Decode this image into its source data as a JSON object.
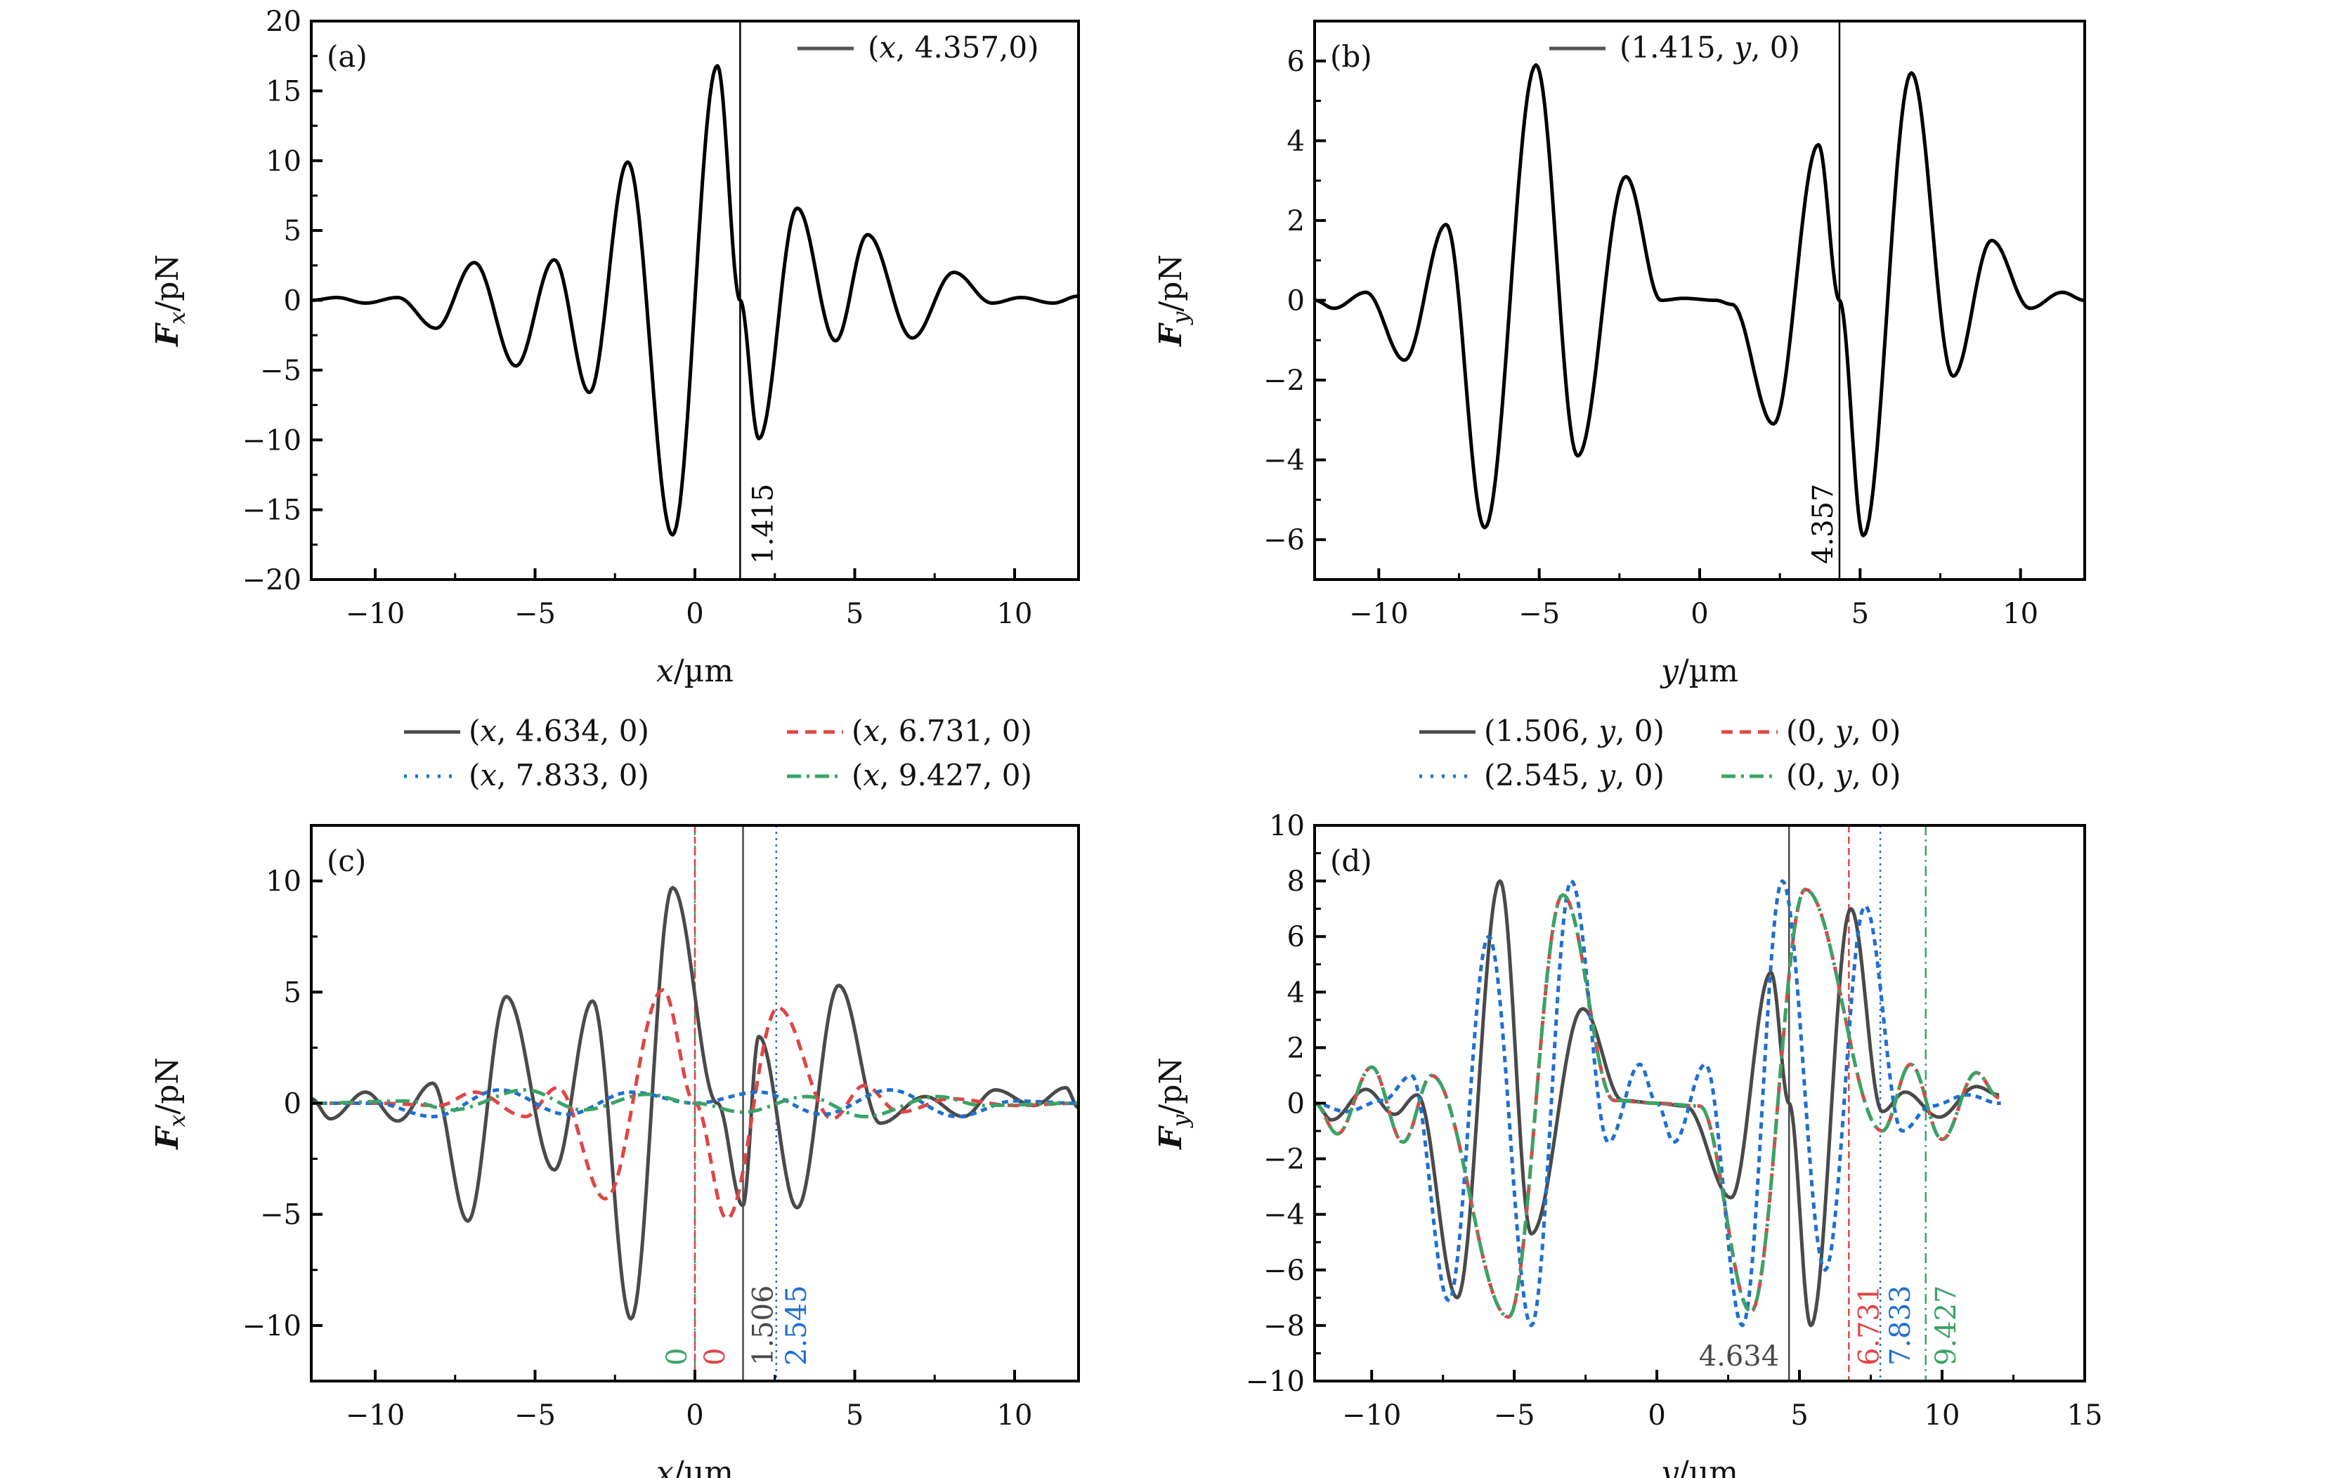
{
  "chart_data": [
    {
      "id": "a",
      "type": "line",
      "panel_label": "(a)",
      "xlabel": "x/µm",
      "ylabel": "Fx/pN",
      "xlim": [
        -12,
        12
      ],
      "ylim": [
        -20,
        20
      ],
      "xticks": [
        -10,
        -5,
        0,
        5,
        10
      ],
      "xtick_labels": [
        "−10",
        "−5",
        "0",
        "5",
        "10"
      ],
      "yticks": [
        -20,
        -15,
        -10,
        -5,
        0,
        5,
        10,
        15,
        20
      ],
      "ytick_labels": [
        "−20",
        "−15",
        "−10",
        "−5",
        "0",
        "5",
        "10",
        "15",
        "20"
      ],
      "legend_position": "top-right",
      "series": [
        {
          "name": "(x, 4.357,0)",
          "color": "#000000",
          "style": "solid",
          "x": [
            -12,
            -11.2,
            -10.3,
            -9.3,
            -8.1,
            -6.9,
            -5.6,
            -4.4,
            -3.3,
            -2.1,
            -0.7,
            0.7,
            1.415,
            2.0,
            3.2,
            4.4,
            5.4,
            6.8,
            8.1,
            9.3,
            10.2,
            11.2,
            12
          ],
          "y": [
            0,
            0.2,
            -0.2,
            0.2,
            -2.0,
            2.7,
            -4.7,
            2.9,
            -6.6,
            9.9,
            -16.8,
            16.8,
            0,
            -9.9,
            6.6,
            -2.9,
            4.7,
            -2.7,
            2.0,
            -0.2,
            0.2,
            -0.2,
            0.3
          ]
        }
      ],
      "markers": [
        {
          "x": 1.415,
          "label": "1.415",
          "color": "#000000",
          "style": "solid"
        }
      ]
    },
    {
      "id": "b",
      "type": "line",
      "panel_label": "(b)",
      "xlabel": "y/µm",
      "ylabel": "Fy/pN",
      "xlim": [
        -12,
        12
      ],
      "ylim": [
        -7,
        7
      ],
      "xticks": [
        -10,
        -5,
        0,
        5,
        10
      ],
      "xtick_labels": [
        "−10",
        "−5",
        "0",
        "5",
        "10"
      ],
      "yticks": [
        -6,
        -4,
        -2,
        0,
        2,
        4,
        6
      ],
      "ytick_labels": [
        "−6",
        "−4",
        "−2",
        "0",
        "2",
        "4",
        "6"
      ],
      "legend_position": "top-center",
      "series": [
        {
          "name": "(1.415, y, 0)",
          "color": "#000000",
          "style": "solid",
          "x": [
            -12,
            -11.4,
            -10.4,
            -9.2,
            -7.9,
            -6.7,
            -5.1,
            -3.8,
            -2.3,
            -1.2,
            -0.5,
            0.5,
            1.0,
            2.3,
            3.7,
            4.357,
            5.1,
            6.6,
            7.9,
            9.1,
            10.3,
            11.3,
            12
          ],
          "y": [
            0,
            -0.2,
            0.2,
            -1.5,
            1.9,
            -5.7,
            5.9,
            -3.9,
            3.1,
            0,
            0.05,
            0,
            -0.1,
            -3.1,
            3.9,
            0,
            -5.9,
            5.7,
            -1.9,
            1.5,
            -0.2,
            0.2,
            0
          ]
        }
      ],
      "markers": [
        {
          "x": 4.357,
          "label": "4.357",
          "color": "#000000",
          "style": "solid"
        }
      ]
    },
    {
      "id": "c",
      "type": "line",
      "panel_label": "(c)",
      "xlabel": "x/µm",
      "ylabel": "Fx/pN",
      "xlim": [
        -12,
        12
      ],
      "ylim": [
        -12.5,
        12.5
      ],
      "xticks": [
        -10,
        -5,
        0,
        5,
        10
      ],
      "xtick_labels": [
        "−10",
        "−5",
        "0",
        "5",
        "10"
      ],
      "yticks": [
        -10,
        -5,
        0,
        5,
        10
      ],
      "ytick_labels": [
        "−10",
        "−5",
        "0",
        "5",
        "10"
      ],
      "legend_position": "top-outside",
      "series": [
        {
          "name": "(x, 4.634, 0)",
          "color": "#4a4a4a",
          "style": "solid",
          "x": [
            -12,
            -11.4,
            -10.3,
            -9.3,
            -8.2,
            -7.1,
            -5.9,
            -4.4,
            -3.2,
            -2.0,
            -0.7,
            0.7,
            1.5,
            2.0,
            3.2,
            4.5,
            5.8,
            7.2,
            8.4,
            9.4,
            10.6,
            11.6,
            12
          ],
          "y": [
            0.2,
            -0.7,
            0.5,
            -0.8,
            0.9,
            -5.3,
            4.8,
            -3.0,
            4.6,
            -9.7,
            9.7,
            0,
            -4.6,
            3.0,
            -4.7,
            5.3,
            -0.9,
            0.3,
            -0.6,
            0.6,
            -0.1,
            0.7,
            -0.2
          ]
        },
        {
          "name": "(x, 6.731, 0)",
          "color": "#e04545",
          "style": "dashed",
          "x": [
            -12,
            -10,
            -8,
            -6.9,
            -5.3,
            -4.3,
            -2.8,
            -1.0,
            0,
            1.0,
            2.6,
            4.3,
            5.3,
            6.4,
            8,
            10,
            12
          ],
          "y": [
            0,
            0,
            -0.1,
            0.5,
            -0.6,
            0.7,
            -4.3,
            5.1,
            0,
            -5.2,
            4.3,
            -0.7,
            0.8,
            -0.4,
            0.2,
            -0.1,
            0
          ]
        },
        {
          "name": "(x, 7.833, 0)",
          "color": "#1f6fd1",
          "style": "dotted",
          "x": [
            -12,
            -10,
            -8.2,
            -6.1,
            -4.0,
            -2.0,
            0,
            2.0,
            4.0,
            6.1,
            8.2,
            10,
            12
          ],
          "y": [
            0,
            0,
            -0.6,
            0.6,
            -0.5,
            0.5,
            0,
            0.5,
            -0.5,
            0.6,
            -0.6,
            0.1,
            0
          ]
        },
        {
          "name": "(x, 9.427, 0)",
          "color": "#3aa366",
          "style": "dashdot",
          "x": [
            -12,
            -9,
            -7.6,
            -5.3,
            -3.5,
            -1.5,
            0,
            1.5,
            3.5,
            5.3,
            7.6,
            9,
            12
          ],
          "y": [
            0,
            0.1,
            -0.3,
            0.6,
            -0.3,
            0.4,
            0,
            -0.4,
            0.3,
            -0.6,
            0.3,
            -0.1,
            0
          ]
        }
      ],
      "markers": [
        {
          "x": 0,
          "label": "0",
          "color": "#3aa366",
          "style": "dashdot",
          "side": "left"
        },
        {
          "x": 0,
          "label": "0",
          "color": "#e04545",
          "style": "dashed",
          "side": "right"
        },
        {
          "x": 1.506,
          "label": "1.506",
          "color": "#4a4a4a",
          "style": "solid",
          "side": "right"
        },
        {
          "x": 2.545,
          "label": "2.545",
          "color": "#1f6fd1",
          "style": "dotted",
          "side": "right"
        }
      ]
    },
    {
      "id": "d",
      "type": "line",
      "panel_label": "(d)",
      "xlabel": "y/µm",
      "ylabel": "Fy/pN",
      "xlim": [
        -12,
        15
      ],
      "ylim": [
        -10,
        10
      ],
      "xticks": [
        -10,
        -5,
        0,
        5,
        10,
        15
      ],
      "xtick_labels": [
        "−10",
        "−5",
        "0",
        "5",
        "10",
        "15"
      ],
      "yticks": [
        -10,
        -8,
        -6,
        -4,
        -2,
        0,
        2,
        4,
        6,
        8,
        10
      ],
      "ytick_labels": [
        "−10",
        "−8",
        "−6",
        "−4",
        "−2",
        "0",
        "2",
        "4",
        "6",
        "8",
        "10"
      ],
      "legend_position": "top-outside",
      "series": [
        {
          "name": "(1.506, y, 0)",
          "color": "#4a4a4a",
          "style": "solid",
          "x": [
            -12,
            -11.4,
            -10.2,
            -9.2,
            -8.4,
            -7.0,
            -5.5,
            -4.4,
            -2.6,
            -1.2,
            0,
            1.0,
            2.6,
            4.0,
            4.634,
            5.4,
            6.8,
            7.9,
            8.7,
            9.9,
            11.2,
            12
          ],
          "y": [
            0,
            -0.6,
            0.5,
            -0.4,
            0.3,
            -7.0,
            8.0,
            -4.7,
            3.4,
            0.1,
            0,
            -0.1,
            -3.4,
            4.7,
            0,
            -8.0,
            7.0,
            -0.3,
            0.4,
            -0.5,
            0.6,
            0.3
          ]
        },
        {
          "name": "(0, y, 0)",
          "color": "#e04545",
          "style": "dashed",
          "x": [
            -12,
            -11.2,
            -10.0,
            -8.9,
            -7.9,
            -5.2,
            -3.3,
            -1.5,
            0,
            1.5,
            3.3,
            5.2,
            7.9,
            8.9,
            10.0,
            11.2,
            12
          ],
          "y": [
            0,
            -1.1,
            1.3,
            -1.4,
            1.0,
            -7.7,
            7.5,
            0.1,
            0,
            -0.1,
            -7.5,
            7.7,
            -1.0,
            1.4,
            -1.3,
            1.1,
            0.2
          ]
        },
        {
          "name": "(2.545, y, 0)",
          "color": "#1f6fd1",
          "style": "dotted",
          "x": [
            -12,
            -10.9,
            -9.6,
            -8.6,
            -7.3,
            -5.9,
            -4.4,
            -3.0,
            -1.7,
            -0.6,
            0,
            0.6,
            1.7,
            3.0,
            4.4,
            5.9,
            7.3,
            8.6,
            9.6,
            10.9,
            12
          ],
          "y": [
            0,
            -0.3,
            0.1,
            1.0,
            -7.1,
            6.0,
            -8.0,
            8.0,
            -1.4,
            1.4,
            0,
            -1.4,
            1.4,
            -8.0,
            8.0,
            -6.0,
            7.1,
            -1.0,
            -0.1,
            0.3,
            0
          ]
        },
        {
          "name": "(0, y, 0)",
          "color": "#3aa366",
          "style": "dashdot",
          "x": [
            -12,
            -11.2,
            -10.0,
            -8.9,
            -7.9,
            -5.2,
            -3.3,
            -1.5,
            0,
            1.5,
            3.3,
            5.2,
            7.9,
            8.9,
            10.0,
            11.2,
            12
          ],
          "y": [
            0,
            -1.1,
            1.3,
            -1.4,
            1.0,
            -7.7,
            7.5,
            0.1,
            0,
            -0.1,
            -7.5,
            7.7,
            -1.0,
            1.4,
            -1.3,
            1.1,
            0.2
          ]
        }
      ],
      "markers": [
        {
          "x": 4.634,
          "label": "4.634",
          "color": "#4a4a4a",
          "style": "solid",
          "side": "left-horizontal"
        },
        {
          "x": 6.731,
          "label": "6.731",
          "color": "#e04545",
          "style": "dashed",
          "side": "right"
        },
        {
          "x": 7.833,
          "label": "7.833",
          "color": "#1f6fd1",
          "style": "dotted",
          "side": "right"
        },
        {
          "x": 9.427,
          "label": "9.427",
          "color": "#3aa366",
          "style": "dashdot",
          "side": "right"
        }
      ]
    }
  ]
}
